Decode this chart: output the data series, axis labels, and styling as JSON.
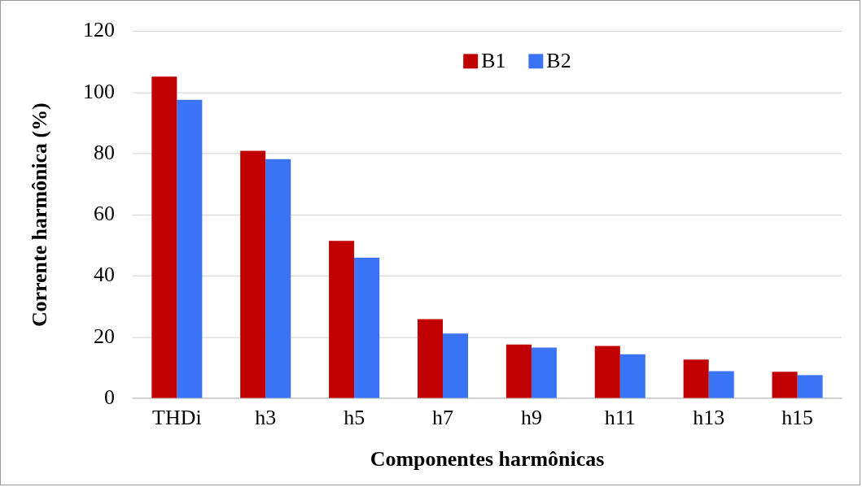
{
  "chart_data": {
    "type": "bar",
    "xlabel": "Componentes harmônicas",
    "ylabel": "Corrente harmônica (%)",
    "categories": [
      "THDi",
      "h3",
      "h5",
      "h7",
      "h9",
      "h11",
      "h13",
      "h15"
    ],
    "series": [
      {
        "name": "B1",
        "color": "#c00000",
        "values": [
          105.2,
          80.9,
          51.5,
          25.9,
          17.6,
          17.1,
          12.7,
          8.7
        ]
      },
      {
        "name": "B2",
        "color": "#3a74f5",
        "values": [
          97.6,
          78.2,
          46,
          21.2,
          16.6,
          14.4,
          8.9,
          7.6
        ]
      }
    ],
    "ylim": [
      0,
      120
    ],
    "yticks": [
      0,
      20,
      40,
      60,
      80,
      100,
      120
    ],
    "grid": "y",
    "legend": "top"
  }
}
